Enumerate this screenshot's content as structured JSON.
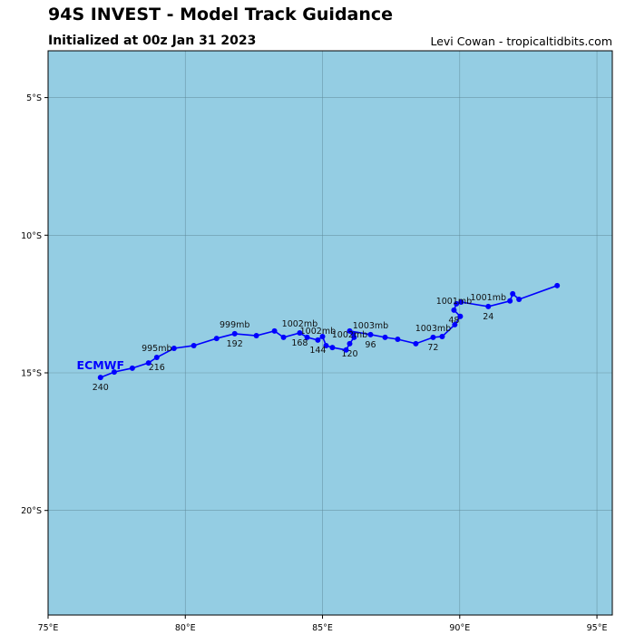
{
  "header": {
    "title": "94S INVEST - Model Track Guidance",
    "subtitle": "Initialized at 00z Jan 31 2023",
    "credit": "Levi Cowan - tropicaltidbits.com"
  },
  "chart_data": {
    "type": "map-track",
    "xlim": [
      75,
      95.56
    ],
    "ylim": [
      -23.8,
      -3.3
    ],
    "grid": true,
    "x_ticks": [
      {
        "value": 75,
        "label": "75°E"
      },
      {
        "value": 80,
        "label": "80°E"
      },
      {
        "value": 85,
        "label": "85°E"
      },
      {
        "value": 90,
        "label": "90°E"
      },
      {
        "value": 95,
        "label": "95°E"
      }
    ],
    "y_ticks": [
      {
        "value": -5,
        "label": "5°S"
      },
      {
        "value": -10,
        "label": "10°S"
      },
      {
        "value": -15,
        "label": "15°S"
      },
      {
        "value": -20,
        "label": "20°S"
      }
    ],
    "colors": {
      "ocean": "#94cde3",
      "grid": "#5f8a99",
      "track": "#0000ff"
    },
    "series": [
      {
        "name": "ECMWF",
        "points": [
          {
            "lon": 93.55,
            "lat": -11.83
          },
          {
            "lon": 92.16,
            "lat": -12.33
          },
          {
            "lon": 91.93,
            "lat": -12.13
          },
          {
            "lon": 91.83,
            "lat": -12.39
          },
          {
            "lon": 91.04,
            "lat": -12.59,
            "hour": "24",
            "mb": "1001mb"
          },
          {
            "lon": 90.05,
            "lat": -12.43
          },
          {
            "lon": 89.88,
            "lat": -12.49
          },
          {
            "lon": 89.79,
            "lat": -12.72,
            "hour": "48",
            "mb": "1001mb"
          },
          {
            "lon": 90.02,
            "lat": -12.95
          },
          {
            "lon": 89.82,
            "lat": -13.25
          },
          {
            "lon": 89.36,
            "lat": -13.68
          },
          {
            "lon": 89.03,
            "lat": -13.71,
            "hour": "72",
            "mb": "1003mb"
          },
          {
            "lon": 88.4,
            "lat": -13.94
          },
          {
            "lon": 87.74,
            "lat": -13.78
          },
          {
            "lon": 87.28,
            "lat": -13.71
          },
          {
            "lon": 86.75,
            "lat": -13.61,
            "hour": "96",
            "mb": "1003mb"
          },
          {
            "lon": 85.99,
            "lat": -13.48
          },
          {
            "lon": 86.12,
            "lat": -13.58
          },
          {
            "lon": 86.15,
            "lat": -13.71
          },
          {
            "lon": 85.99,
            "lat": -13.94,
            "hour": "120",
            "mb": "1002mb"
          },
          {
            "lon": 85.86,
            "lat": -14.17
          },
          {
            "lon": 85.36,
            "lat": -14.08
          },
          {
            "lon": 85.13,
            "lat": -14.01
          },
          {
            "lon": 85.0,
            "lat": -13.68
          },
          {
            "lon": 84.83,
            "lat": -13.81,
            "hour": "144",
            "mb": "1002mb"
          },
          {
            "lon": 84.44,
            "lat": -13.71
          },
          {
            "lon": 84.17,
            "lat": -13.55,
            "hour": "168",
            "mb": "1002mb"
          },
          {
            "lon": 83.58,
            "lat": -13.71
          },
          {
            "lon": 83.25,
            "lat": -13.48
          },
          {
            "lon": 82.59,
            "lat": -13.65
          },
          {
            "lon": 81.8,
            "lat": -13.58,
            "hour": "192",
            "mb": "999mb"
          },
          {
            "lon": 81.14,
            "lat": -13.75
          },
          {
            "lon": 80.31,
            "lat": -14.01
          },
          {
            "lon": 79.59,
            "lat": -14.11
          },
          {
            "lon": 78.96,
            "lat": -14.44,
            "hour": "216",
            "mb": "995mb"
          },
          {
            "lon": 78.66,
            "lat": -14.64
          },
          {
            "lon": 78.07,
            "lat": -14.83
          },
          {
            "lon": 77.41,
            "lat": -14.97
          },
          {
            "lon": 76.91,
            "lat": -15.17,
            "hour": "240"
          }
        ]
      }
    ]
  }
}
